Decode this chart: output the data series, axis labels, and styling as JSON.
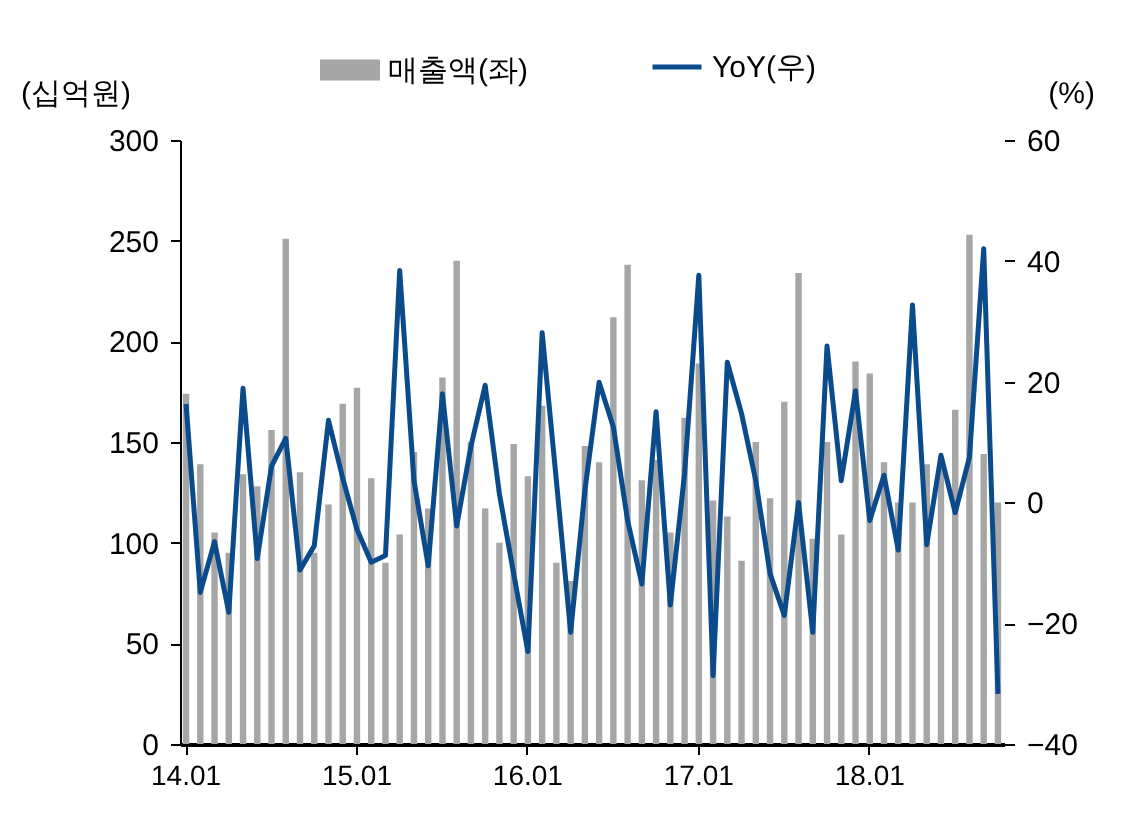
{
  "chart_data": {
    "type": "bar",
    "ylabel": "(십억원)",
    "y2label": "(%)",
    "legend": "top",
    "grid": false,
    "categories": [
      "14.01",
      null,
      null,
      null,
      null,
      null,
      null,
      null,
      null,
      null,
      null,
      null,
      "15.01",
      null,
      null,
      null,
      null,
      null,
      null,
      null,
      null,
      null,
      null,
      null,
      "16.01",
      null,
      null,
      null,
      null,
      null,
      null,
      null,
      null,
      null,
      null,
      null,
      "17.01",
      null,
      null,
      null,
      null,
      null,
      null,
      null,
      null,
      null,
      null,
      null,
      "18.01",
      null,
      null,
      null,
      null,
      null,
      null,
      null,
      null,
      null
    ],
    "ylim": [
      0,
      300
    ],
    "yticks": [
      0,
      50,
      100,
      150,
      200,
      250,
      300
    ],
    "y2lim": [
      -40,
      60
    ],
    "y2ticks": [
      -40,
      -20,
      0,
      20,
      40,
      60
    ],
    "series": [
      {
        "name": "매출액(좌)",
        "color": "#a6a6a6",
        "values": [
          174,
          139,
          105,
          95,
          134,
          128,
          156,
          251,
          135,
          95,
          119,
          169,
          177,
          132,
          90,
          104,
          145,
          117,
          182,
          240,
          150,
          117,
          100,
          149,
          133,
          168,
          90,
          81,
          148,
          140,
          212,
          238,
          131,
          141,
          105,
          162,
          189,
          121,
          113,
          91,
          150,
          122,
          170,
          234,
          102,
          150,
          104,
          190,
          184,
          140,
          120,
          120,
          139,
          140,
          166,
          253,
          144,
          120
        ]
      },
      {
        "name": "YoY(우)",
        "type": "line",
        "axis": "y2",
        "color": "#0b4a8b",
        "values": [
          16.3,
          -14.9,
          -6.5,
          -18.2,
          18.9,
          -9.3,
          6,
          10.6,
          -11.2,
          -7.2,
          13.6,
          4,
          -4.5,
          -9.9,
          -8.8,
          38.4,
          3.6,
          -10.5,
          18,
          -3.9,
          9.3,
          19.4,
          1.4,
          -11.8,
          -24.7,
          28.1,
          3.6,
          -21.5,
          2,
          19.9,
          12.5,
          -3,
          -13.5,
          15,
          -17,
          4.8,
          37.6,
          -28.7,
          23.2,
          14.7,
          3.6,
          -11.8,
          -18.7,
          0,
          -21.5,
          25.9,
          3.6,
          18.5,
          -3,
          4.5,
          -7.9,
          32.7,
          -7,
          7.8,
          -1.7,
          7.5,
          42,
          -31.7
        ]
      }
    ]
  }
}
